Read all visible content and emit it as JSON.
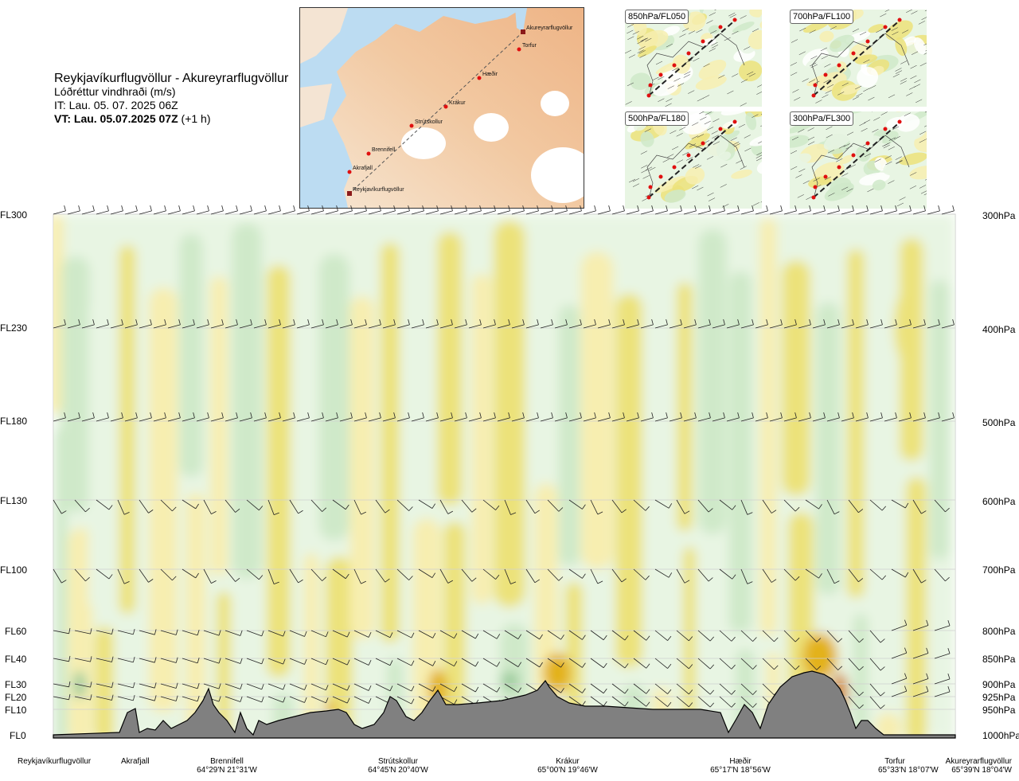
{
  "header": {
    "route_title": "Reykjavíkurflugvöllur - Akureyrarflugvöllur",
    "quantity": "Lóðréttur vindhraði (m/s)",
    "issue_time": "IT: Lau. 05. 07. 2025 06Z",
    "valid_time_bold": "VT: Lau. 05.07.2025 07Z",
    "valid_time_offset": "(+1 h)"
  },
  "route_map": {
    "points": [
      {
        "name": "Akureyrarflugvöllur"
      },
      {
        "name": "Torfur"
      },
      {
        "name": "Hæðir"
      },
      {
        "name": "Krákur"
      },
      {
        "name": "Strútskollur"
      },
      {
        "name": "Brennifell"
      },
      {
        "name": "Akrafjall"
      },
      {
        "name": "Reykjavíkurflugvöllur"
      }
    ]
  },
  "mini_maps": [
    {
      "label": "850hPa/FL050"
    },
    {
      "label": "700hPa/FL100"
    },
    {
      "label": "500hPa/FL180"
    },
    {
      "label": "300hPa/FL300"
    }
  ],
  "colors": {
    "terrain": "#808080",
    "updraft_light": "#f7eeb0",
    "updraft": "#ece27a",
    "updraft_strong": "#e3b21b",
    "updraft_max": "#d2861b",
    "downdraft_light": "#e8f5e3",
    "downdraft": "#cfe9c9",
    "downdraft_strong": "#9fcd9f",
    "near_zero": "#ffffff",
    "route_line": "#222222",
    "waypoint": "#e01010"
  },
  "chart_data": {
    "type": "heatmap",
    "quantity": "Lóðréttur vindhraði (m/s)",
    "levels": [
      {
        "fl": "FL300",
        "hpa": "300hPa"
      },
      {
        "fl": "FL230",
        "hpa": "400hPa"
      },
      {
        "fl": "FL180",
        "hpa": "500hPa"
      },
      {
        "fl": "FL130",
        "hpa": "600hPa"
      },
      {
        "fl": "FL100",
        "hpa": "700hPa"
      },
      {
        "fl": "FL60",
        "hpa": "800hPa"
      },
      {
        "fl": "FL40",
        "hpa": "850hPa"
      },
      {
        "fl": "FL30",
        "hpa": "900hPa"
      },
      {
        "fl": "FL20",
        "hpa": "925hPa"
      },
      {
        "fl": "FL10",
        "hpa": "950hPa"
      },
      {
        "fl": "FL0",
        "hpa": "1000hPa"
      }
    ],
    "waypoints": [
      {
        "name": "Reykjavíkurflugvöllur",
        "coord": ""
      },
      {
        "name": "Akrafjall",
        "coord": ""
      },
      {
        "name": "Brennifell",
        "coord": "64°29'N 21°31'W"
      },
      {
        "name": "Strútskollur",
        "coord": "64°45'N 20°40'W"
      },
      {
        "name": "Krákur",
        "coord": "65°00'N 19°46'W"
      },
      {
        "name": "Hæðir",
        "coord": "65°17'N 18°56'W"
      },
      {
        "name": "Torfur",
        "coord": "65°33'N 18°07'W"
      },
      {
        "name": "Akureyrarflugvöllur",
        "coord": "65°39'N 18°04'W"
      }
    ]
  }
}
